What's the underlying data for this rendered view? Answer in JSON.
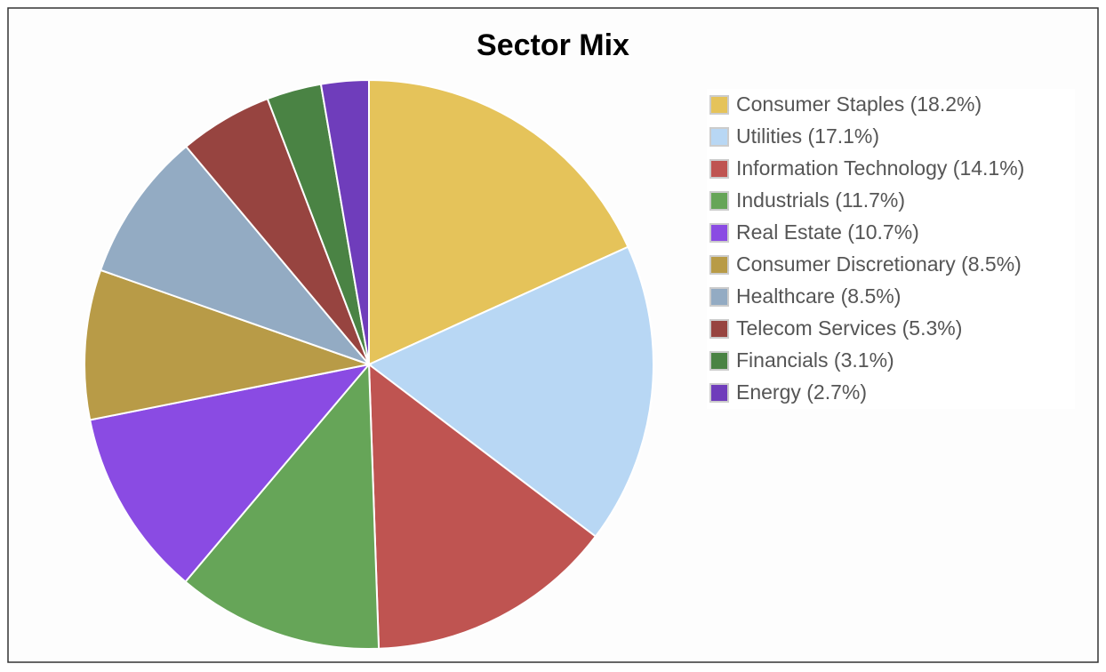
{
  "chart_data": {
    "type": "pie",
    "title": "Sector Mix",
    "categories": [
      "Consumer Staples (18.2%)",
      "Utilities (17.1%)",
      "Information Technology (14.1%)",
      "Industrials (11.7%)",
      "Real Estate (10.7%)",
      "Consumer Discretionary (8.5%)",
      "Healthcare (8.5%)",
      "Telecom Services (5.3%)",
      "Financials (3.1%)",
      "Energy (2.7%)"
    ],
    "values": [
      18.2,
      17.1,
      14.1,
      11.7,
      10.7,
      8.5,
      8.5,
      5.3,
      3.1,
      2.7
    ],
    "colors": [
      "#e5c35a",
      "#b8d7f4",
      "#bf5451",
      "#66a558",
      "#8a4be3",
      "#b89b47",
      "#93abc3",
      "#974440",
      "#4a8344",
      "#6f3dbb"
    ],
    "legend": "right"
  }
}
